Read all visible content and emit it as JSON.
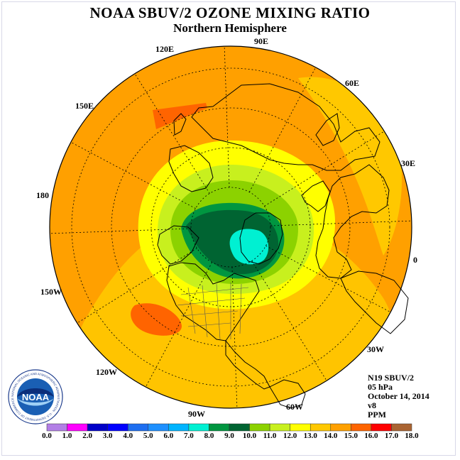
{
  "title": "NOAA SBUV/2 OZONE MIXING RATIO",
  "subtitle": "Northern Hemisphere",
  "longitude_labels": {
    "lon_90e": "90E",
    "lon_60e": "60E",
    "lon_30e": "30E",
    "lon_0": "0",
    "lon_30w": "30W",
    "lon_60w": "60W",
    "lon_90w": "90W",
    "lon_120w": "120W",
    "lon_150w": "150W",
    "lon_180": "180",
    "lon_150e": "150E",
    "lon_120e": "120E"
  },
  "info": {
    "instrument": "N19 SBUV/2",
    "pressure": "05 hPa",
    "date": "October 14, 2014",
    "version": "v8",
    "units": "PPM"
  },
  "logo": {
    "text": "NOAA",
    "ring_text": "NATIONAL OCEANIC AND ATMOSPHERIC ADMINISTRATION · U.S. DEPARTMENT OF COMMERCE"
  },
  "color_scale": {
    "labels": [
      "0.0",
      "1.0",
      "2.0",
      "3.0",
      "4.0",
      "5.0",
      "6.0",
      "7.0",
      "8.0",
      "9.0",
      "10.0",
      "11.0",
      "12.0",
      "13.0",
      "14.0",
      "15.0",
      "16.0",
      "17.0",
      "18.0"
    ],
    "colors": [
      "#b27fe6",
      "#dcb4f0",
      "#ff00ff",
      "#0000c8",
      "#0000ff",
      "#1e6ef0",
      "#1e90ff",
      "#00b4ff",
      "#00f0d2",
      "#009640",
      "#006432",
      "#8cd200",
      "#c8f01e",
      "#ffff00",
      "#ffc800",
      "#ffa000",
      "#ff6400",
      "#ff0000",
      "#aa6432"
    ]
  }
}
